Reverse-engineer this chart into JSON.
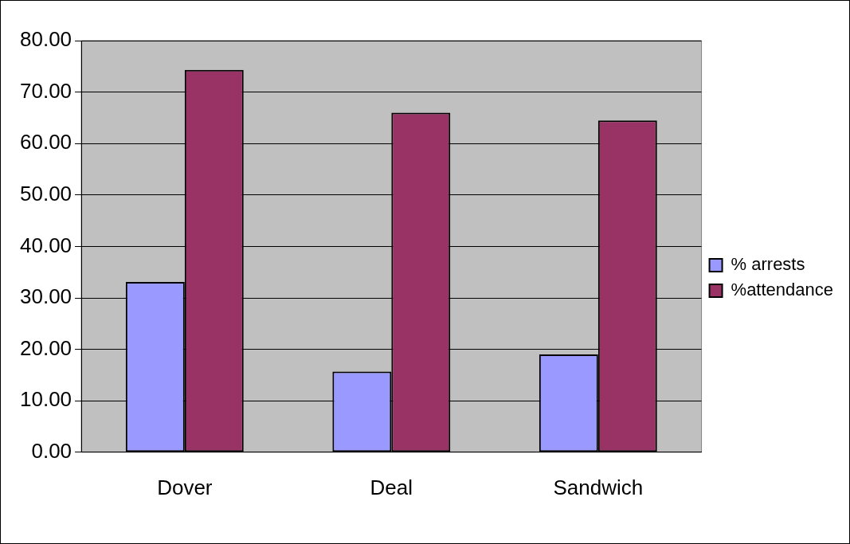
{
  "chart_data": {
    "type": "bar",
    "categories": [
      "Dover",
      "Deal",
      "Sandwich"
    ],
    "series": [
      {
        "name": "% arrests",
        "color": "#9999ff",
        "values": [
          33.1,
          15.7,
          19.0
        ]
      },
      {
        "name": "%attendance",
        "color": "#993366",
        "values": [
          74.3,
          66.0,
          64.5
        ]
      }
    ],
    "ylim": [
      0,
      80
    ],
    "yticks": [
      {
        "value": 0,
        "label": "0.00"
      },
      {
        "value": 10,
        "label": "10.00"
      },
      {
        "value": 20,
        "label": "20.00"
      },
      {
        "value": 30,
        "label": "30.00"
      },
      {
        "value": 40,
        "label": "40.00"
      },
      {
        "value": 50,
        "label": "50.00"
      },
      {
        "value": 60,
        "label": "60.00"
      },
      {
        "value": 70,
        "label": "70.00"
      },
      {
        "value": 80,
        "label": "80.00"
      }
    ],
    "grid": "y",
    "legend": "right"
  }
}
